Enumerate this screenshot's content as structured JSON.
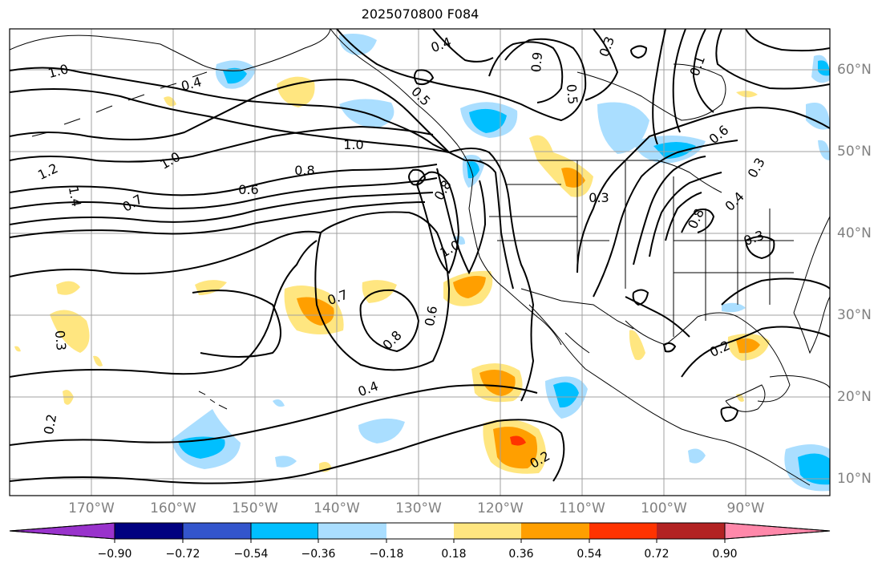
{
  "title": "2025070800 F084",
  "colors": {
    "contour": "#000000",
    "grid": "#a0a0a0",
    "coast": "#000000",
    "axis_label": "#808080"
  },
  "lat_labels": [
    "60°N",
    "50°N",
    "40°N",
    "30°N",
    "20°N",
    "10°N"
  ],
  "lon_labels": [
    "170°W",
    "160°W",
    "150°W",
    "140°W",
    "130°W",
    "120°W",
    "110°W",
    "100°W",
    "90°W"
  ],
  "contour_labels": [
    {
      "text": "1.0"
    },
    {
      "text": "0.4"
    },
    {
      "text": "0.4"
    },
    {
      "text": "0.3"
    },
    {
      "text": "0.9"
    },
    {
      "text": "0.5"
    },
    {
      "text": "0.5"
    },
    {
      "text": "0.1"
    },
    {
      "text": "1.0"
    },
    {
      "text": "1.0"
    },
    {
      "text": "0.8"
    },
    {
      "text": "0.6"
    },
    {
      "text": "1.2"
    },
    {
      "text": "1.4"
    },
    {
      "text": "0.7"
    },
    {
      "text": "0.3"
    },
    {
      "text": "0.6"
    },
    {
      "text": "0.8"
    },
    {
      "text": "1.0"
    },
    {
      "text": "0.7"
    },
    {
      "text": "0.8"
    },
    {
      "text": "0.6"
    },
    {
      "text": "0.4"
    },
    {
      "text": "0.2"
    },
    {
      "text": "0.3"
    },
    {
      "text": "0.2"
    },
    {
      "text": "0.2"
    },
    {
      "text": "0.3"
    },
    {
      "text": "0.4"
    },
    {
      "text": "0.3"
    },
    {
      "text": "0.8"
    }
  ],
  "colorbar": {
    "colors": [
      "#9933cc",
      "#000080",
      "#3355cc",
      "#00bfff",
      "#aadeff",
      "#ffffff",
      "#ffe680",
      "#ff9f00",
      "#ff3300",
      "#b22222",
      "#ff88aa"
    ],
    "labels": [
      "−0.90",
      "−0.72",
      "−0.54",
      "−0.36",
      "−0.18",
      "0.18",
      "0.36",
      "0.54",
      "0.72",
      "0.90"
    ]
  },
  "legend_colors": {
    "neg_light": "#aadeff",
    "neg_mid": "#00bfff",
    "pos_light": "#ffe680",
    "pos_mid": "#ff9f00",
    "pos_high": "#ff3300"
  }
}
